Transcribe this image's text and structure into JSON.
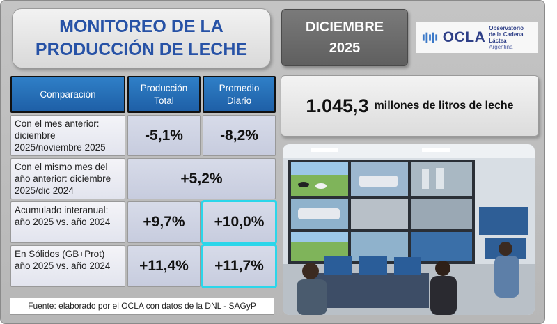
{
  "title": {
    "line1": "MONITOREO DE LA",
    "line2": "PRODUCCIÓN DE LECHE"
  },
  "period": {
    "month": "DICIEMBRE",
    "year": "2025"
  },
  "logo": {
    "name": "OCLA",
    "line1": "Observatorio",
    "line2": "de la Cadena Láctea",
    "line3": "Argentina",
    "icon": "milk-wave-icon"
  },
  "table": {
    "headers": [
      "Comparación",
      "Producción Total",
      "Promedio Diario"
    ],
    "rows": [
      {
        "label": "Con el mes anterior: diciembre 2025/noviembre 2025",
        "total": "-5,1%",
        "daily": "-8,2%"
      },
      {
        "label": "Con el mismo mes del año anterior: diciembre 2025/dic 2024",
        "combined": "+5,2%"
      },
      {
        "label": "Acumulado interanual: año 2025 vs. año 2024",
        "total": "+9,7%",
        "daily": "+10,0%"
      },
      {
        "label": "En Sólidos (GB+Prot) año 2025 vs. año 2024",
        "total": "+11,4%",
        "daily": "+11,7%"
      }
    ]
  },
  "volume": {
    "value": "1.045,3",
    "unit": "millones de litros de leche"
  },
  "source": "Fuente: elaborado por el OCLA con datos de la DNL - SAGyP",
  "colors": {
    "title": "#2752a6",
    "header": "#1e5fa6",
    "highlight": "#2bd6ea",
    "month_bg": "#6b6b6b"
  }
}
